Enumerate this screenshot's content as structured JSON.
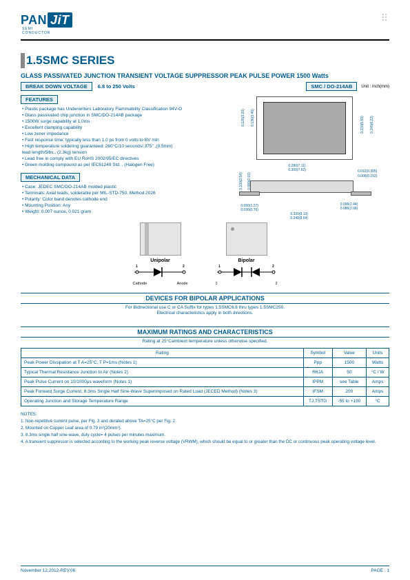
{
  "logo": {
    "left": "PAN",
    "right": "JiT",
    "sub1": "SEMI",
    "sub2": "CONDUCTOR"
  },
  "title": "1.5SMC SERIES",
  "subtitle": "GLASS PASSIVATED JUNCTION TRANSIENT VOLTAGE SUPPRESSOR  PEAK PULSE POWER  1500 Watts",
  "bands": {
    "bdv": "BREAK DOWN VOLTAGE",
    "range": "6.8  to  250 Volts",
    "pkg": "SMC / DO-214AB",
    "unit": "Unit : inch(mm)"
  },
  "features_head": "FEATURES",
  "features": [
    "• Plastic package has Underwriters Laboratory Flammability Classification 94V-O",
    "• Glass passivated chip junction in SMC/DO-214AB package",
    "• 1500W surge capability at 1.0ms",
    "• Excellent clamping capability",
    "• Low zener impedance",
    "• Fast response time: typically less than 1.0 ps from 0 volts to BV min",
    "• High temperature soldering guaranteed: 260°C/10 seconds/.375\" ,(9.5mm)",
    "  lead length/5lbs., (2.3kg) tension",
    "• Lead free in comply with EU RoHS 2002/95/EC directives",
    "• Green molding compound as per IEC61249 Std. . (Halogen Free)"
  ],
  "mech_head": "MECHANICAL DATA",
  "mech": [
    "• Case: JEDEC SMC/DO-214AB  molded plastic",
    "• Terminals: Axial leads, solderable per MIL-STD-750, Method 2026",
    "• Polarity:  Color band denotes cathode end",
    "• Mounting Position: Any",
    "• Weight: 0.007 ounce, 0.021 gram"
  ],
  "dims": {
    "top_w": "0.280(7.11)",
    "top_w2": "0.300(7.62)",
    "top_h": "0.245(6.22)",
    "top_h2": "0.220(5.59)",
    "top_l": "0.126(3.20)",
    "top_l2": "0.136(3.45)",
    "side_h": "0.012(0.305)",
    "side_h2": "0.006(0.152)",
    "side_body_h": "0.100(2.54)",
    "side_body_h2": "0.080(2.03)",
    "lead": "0.050(1.27)",
    "lead2": "0.030(0.76)",
    "total": "0.320(8.13)",
    "total2": "0.340(8.64)",
    "lead_w": "0.096(2.44)",
    "lead_w2": "0.086(2.08)"
  },
  "symbols": {
    "uni": "Unipolar",
    "bi": "Bipolar",
    "cathode": "Cathode",
    "anode": "Anode",
    "pin1": "1",
    "pin2": "2"
  },
  "bipolar_head": "DEVICES FOR BIPOLAR APPLICATIONS",
  "bipolar_note1": "For Bidirectional use C or CA Suffix for types 1.5SMC6.8 thru types 1.5SMC250.",
  "bipolar_note2": "Electrical characteristics apply in both directions.",
  "max_head": "MAXIMUM RATINGS AND CHARACTERISTICS",
  "max_note": "Rating at 25°Cambient temperature unless otherwise specified.",
  "table": {
    "headers": [
      "Rating",
      "Symbol",
      "Value",
      "Units"
    ],
    "rows": [
      [
        "Peak Power Dissipation at T A=25°C, T P=1ms (Notes 1)",
        "Ppp",
        "1500",
        "Watts"
      ],
      [
        "Typical Thermal Resistance Junction to Air (Notes 2)",
        "RθJA",
        "50",
        "°C / W"
      ],
      [
        "Peak Pulse Current on 10/1000µs waveform (Notes 1)",
        "IPPM",
        "see Table",
        "Amps"
      ],
      [
        "Peak Forward Surge Current, 8.3ms Single Half Sine-Wave Superimposed on Rated Load (JECED Method) (Notes 3)",
        "IFSM",
        "200",
        "Amps"
      ],
      [
        "Operating Junction and Storage Temperature Range",
        "TJ,TSTG",
        "-55 to +150",
        "°C"
      ]
    ]
  },
  "notes_head": "NOTES:",
  "notes": [
    "1. Non-repetitive current pulse, per Fig. 3 and derated above TA=25°C per Fig. 2.",
    "2. Mounted on Copper Leaf area of  0.79 in²(20mm²).",
    "3. 8.3ms single half sine-wave, duty cycle= 4 pulses per minutes maximum.",
    "4. A transient suppressor is selected according to the working peak reverse voltage (VRWM), which should be equal to or greater than the DC or continuous peak operating voltage level."
  ],
  "footer": {
    "left": "November 12,2012-REV.06",
    "right": "PAGE  . 1"
  },
  "colors": {
    "brand": "#005a8c",
    "bg_band": "#e6f0f7"
  }
}
